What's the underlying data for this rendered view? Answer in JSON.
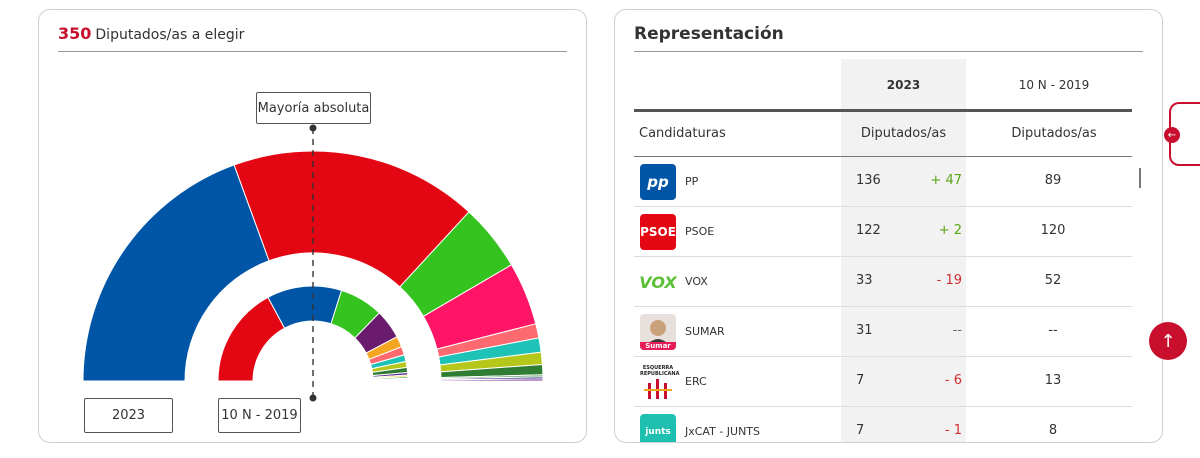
{
  "left": {
    "seats_total": "350",
    "seats_label": "Diputados/as a elegir",
    "majority_label": "Mayoría absoluta",
    "year_current": "2023",
    "year_previous": "10 N - 2019"
  },
  "right": {
    "title": "Representación",
    "col_year_current": "2023",
    "col_year_previous": "10 N - 2019",
    "col_candidaturas": "Candidaturas",
    "col_diputados_current": "Diputados/as",
    "col_diputados_previous": "Diputados/as"
  },
  "rows": [
    {
      "party": "PP",
      "seats": "136",
      "diff": "+ 47",
      "prev": "89",
      "logo_text": "pp",
      "color": "#0055a7"
    },
    {
      "party": "PSOE",
      "seats": "122",
      "diff": "+ 2",
      "prev": "120",
      "logo_text": "PSOE",
      "color": "#e30613"
    },
    {
      "party": "VOX",
      "seats": "33",
      "diff": "- 19",
      "prev": "52",
      "logo_text": "VOX",
      "color": "#5bc035"
    },
    {
      "party": "SUMAR",
      "seats": "31",
      "diff": "--",
      "prev": "--",
      "logo_text": "Sumar",
      "color": "#e51c55"
    },
    {
      "party": "ERC",
      "seats": "7",
      "diff": "- 6",
      "prev": "13",
      "logo_text": "ESQUERRA REPUBLICANA",
      "color": "#f5a623"
    },
    {
      "party": "JxCAT - JUNTS",
      "seats": "7",
      "diff": "- 1",
      "prev": "8",
      "logo_text": "junts",
      "color": "#20c0b0"
    }
  ],
  "chart_data": {
    "type": "pie",
    "title": "",
    "series": [
      {
        "name": "2023",
        "values": [
          136,
          122,
          33,
          31,
          7,
          7,
          6,
          5,
          1,
          1,
          1
        ],
        "colors": [
          "#0055a7",
          "#e30613",
          "#35c41f",
          "#ff1466",
          "#ff6a70",
          "#1ec2b6",
          "#b5c71a",
          "#2e7d32",
          "#6ea86b",
          "#2b2b8f",
          "#7b2d8e"
        ]
      },
      {
        "name": "10 N - 2019",
        "values": [
          120,
          89,
          52,
          35,
          13,
          10,
          8,
          7,
          6,
          3,
          2,
          2,
          1,
          1,
          1
        ],
        "colors": [
          "#e30613",
          "#0055a7",
          "#35c41f",
          "#6a1b6e",
          "#f5a623",
          "#ff6a70",
          "#1ec2b6",
          "#b5c71a",
          "#2e7d32",
          "#5a2b8f",
          "#e8d21a",
          "#28a745",
          "#7b2d8e",
          "#9ccc65",
          "#c0ca33"
        ]
      }
    ]
  }
}
